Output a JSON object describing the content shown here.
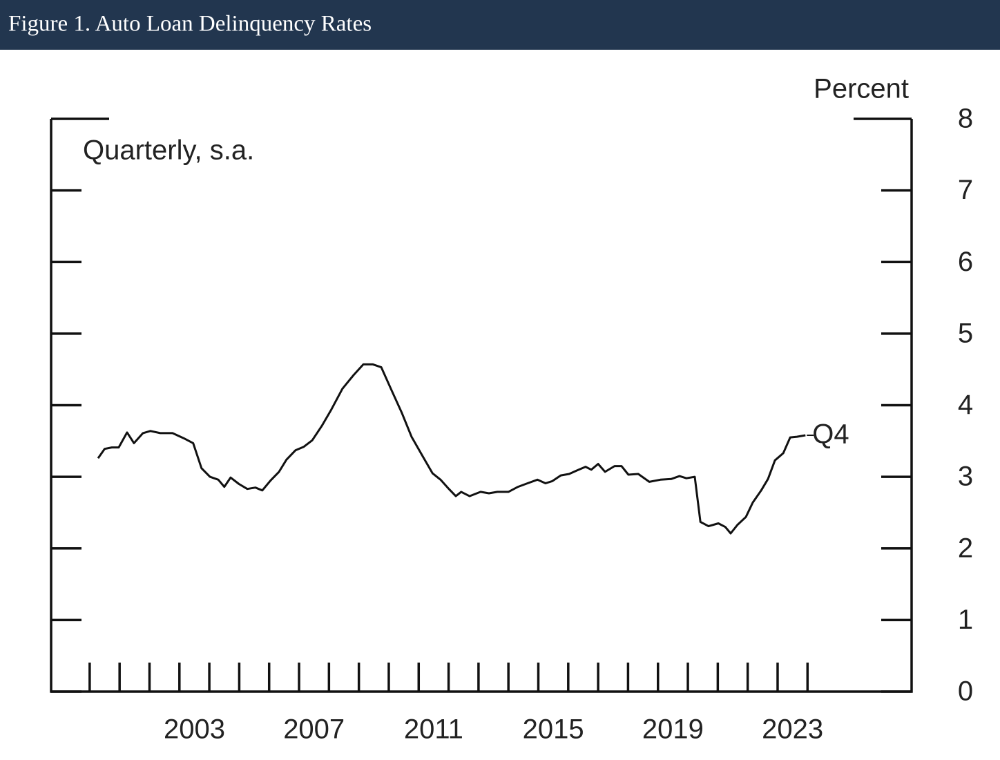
{
  "header": {
    "title": "Figure 1. Auto Loan Delinquency Rates"
  },
  "chart_data": {
    "type": "line",
    "y_axis_label": "Percent",
    "subtitle": "Quarterly, s.a.",
    "annotation": "Q4",
    "color": "#111111",
    "x": [
      2000.28,
      2000.5,
      2000.74,
      2000.97,
      2001.25,
      2001.48,
      2001.78,
      2002.03,
      2002.36,
      2002.77,
      2003.14,
      2003.46,
      2003.74,
      2004.02,
      2004.3,
      2004.5,
      2004.71,
      2004.99,
      2005.27,
      2005.54,
      2005.77,
      2006.05,
      2006.33,
      2006.58,
      2006.88,
      2007.16,
      2007.44,
      2007.76,
      2008.08,
      2008.45,
      2008.82,
      2009.15,
      2009.47,
      2009.75,
      2010.07,
      2010.44,
      2010.76,
      2011.13,
      2011.46,
      2011.73,
      2012.01,
      2012.24,
      2012.42,
      2012.7,
      2013.07,
      2013.35,
      2013.63,
      2014.0,
      2014.32,
      2014.64,
      2014.97,
      2015.24,
      2015.47,
      2015.75,
      2016.03,
      2016.3,
      2016.58,
      2016.77,
      2017.0,
      2017.23,
      2017.55,
      2017.78,
      2018.01,
      2018.34,
      2018.71,
      2019.08,
      2019.45,
      2019.72,
      2019.95,
      2020.23,
      2020.42,
      2020.69,
      2021.02,
      2021.25,
      2021.43,
      2021.66,
      2021.94,
      2022.17,
      2022.45,
      2022.68,
      2022.91,
      2023.19,
      2023.42,
      2023.65,
      2023.93
    ],
    "values": [
      3.26,
      3.39,
      3.41,
      3.41,
      3.62,
      3.47,
      3.61,
      3.64,
      3.61,
      3.61,
      3.54,
      3.47,
      3.12,
      3.0,
      2.96,
      2.86,
      2.99,
      2.9,
      2.83,
      2.85,
      2.81,
      2.95,
      3.07,
      3.24,
      3.37,
      3.42,
      3.51,
      3.71,
      3.94,
      4.23,
      4.42,
      4.57,
      4.57,
      4.53,
      4.23,
      3.89,
      3.56,
      3.29,
      3.05,
      2.96,
      2.83,
      2.73,
      2.79,
      2.73,
      2.79,
      2.77,
      2.79,
      2.79,
      2.86,
      2.91,
      2.96,
      2.91,
      2.94,
      3.02,
      3.04,
      3.09,
      3.14,
      3.1,
      3.18,
      3.07,
      3.15,
      3.15,
      3.03,
      3.04,
      2.93,
      2.96,
      2.97,
      3.01,
      2.98,
      3.0,
      2.37,
      2.31,
      2.35,
      2.3,
      2.21,
      2.33,
      2.44,
      2.64,
      2.81,
      2.97,
      3.23,
      3.33,
      3.55,
      3.56,
      3.58
    ],
    "xlim": [
      1998.71,
      2027.48
    ],
    "xticks": [
      {
        "value": 2003.5,
        "label": "2003"
      },
      {
        "value": 2007.5,
        "label": "2007"
      },
      {
        "value": 2011.5,
        "label": "2011"
      },
      {
        "value": 2015.5,
        "label": "2015"
      },
      {
        "value": 2019.5,
        "label": "2019"
      },
      {
        "value": 2023.5,
        "label": "2023"
      }
    ],
    "xminor_ticks": [
      2000,
      2001,
      2002,
      2003,
      2004,
      2005,
      2006,
      2007,
      2008,
      2009,
      2010,
      2011,
      2012,
      2013,
      2014,
      2015,
      2016,
      2017,
      2018,
      2019,
      2020,
      2021,
      2022,
      2023,
      2024
    ],
    "ylim": [
      0,
      8
    ],
    "yticks": [
      0,
      1,
      2,
      3,
      4,
      5,
      6,
      7,
      8
    ]
  }
}
